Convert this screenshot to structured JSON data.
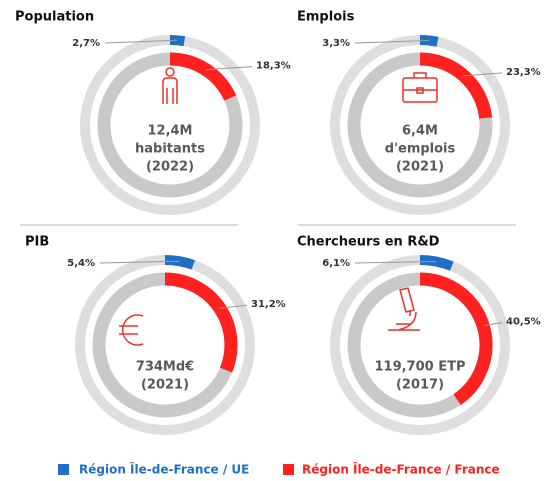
{
  "chart_data": [
    {
      "type": "donut",
      "title": "Population",
      "center": [
        "12,4M",
        "habitants",
        "(2022)"
      ],
      "series": [
        {
          "name": "Région Île-de-France / UE",
          "color": "#1f6fc5",
          "values": [
            2.7
          ],
          "value_labels": [
            "2,7%"
          ]
        },
        {
          "name": "Région Île-de-France / France",
          "color": "#ff2020",
          "values": [
            18.3
          ],
          "value_labels": [
            "18,3%"
          ]
        }
      ]
    },
    {
      "type": "donut",
      "title": "Emplois",
      "center": [
        "6,4M",
        "d'emplois",
        "(2021)"
      ],
      "series": [
        {
          "name": "Région Île-de-France / UE",
          "color": "#1f6fc5",
          "values": [
            3.3
          ],
          "value_labels": [
            "3,3%"
          ]
        },
        {
          "name": "Région Île-de-France / France",
          "color": "#ff2020",
          "values": [
            23.3
          ],
          "value_labels": [
            "23,3%"
          ]
        }
      ]
    },
    {
      "type": "donut",
      "title": "PIB",
      "center": [
        "734Md€",
        "(2021)"
      ],
      "series": [
        {
          "name": "Région Île-de-France / UE",
          "color": "#1f6fc5",
          "values": [
            5.4
          ],
          "value_labels": [
            "5,4%"
          ]
        },
        {
          "name": "Région Île-de-France / France",
          "color": "#ff2020",
          "values": [
            31.2
          ],
          "value_labels": [
            "31,2%"
          ]
        }
      ]
    },
    {
      "type": "donut",
      "title": "Chercheurs en R&D",
      "center": [
        "119,700 ETP",
        "(2017)"
      ],
      "series": [
        {
          "name": "Région Île-de-France / UE",
          "color": "#1f6fc5",
          "values": [
            6.1
          ],
          "value_labels": [
            "6,1%"
          ]
        },
        {
          "name": "Région Île-de-France / France",
          "color": "#ff2020",
          "values": [
            40.5
          ],
          "value_labels": [
            "40,5%"
          ]
        }
      ]
    }
  ]
}
